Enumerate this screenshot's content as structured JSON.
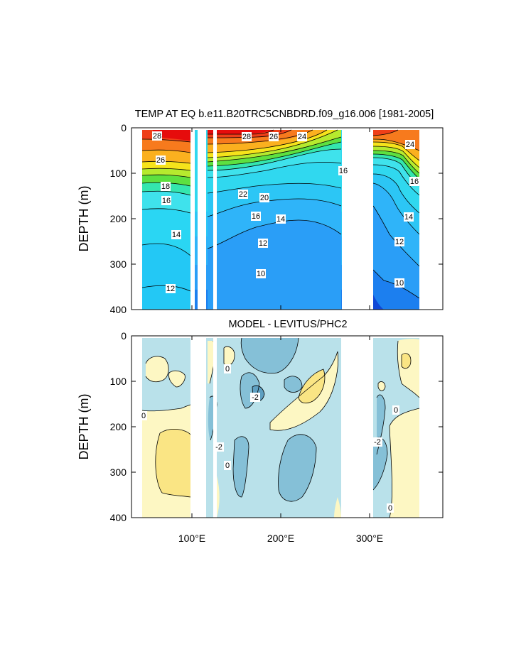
{
  "chart_data": [
    {
      "type": "contour",
      "title": "TEMP AT EQ b.e11.B20TRC5CNBDRD.f09_g16.006 [1981-2005]",
      "ylabel": "DEPTH (m)",
      "xlim": [
        30,
        380
      ],
      "ylim": [
        0,
        400
      ],
      "y_reversed": true,
      "yticks": [
        0,
        100,
        200,
        300,
        400
      ],
      "ytick_labels": [
        "0",
        "100",
        "200",
        "300",
        "400"
      ],
      "contour_interval": 1,
      "colorscale": "rainbow, blue (cold) to red (warm)",
      "land_gaps_lon": [
        [
          99,
          103
        ],
        [
          111,
          117
        ],
        [
          127,
          130
        ],
        [
          279,
          313
        ]
      ],
      "contour_labels": [
        {
          "value": "28",
          "lon": 56,
          "depth": 20
        },
        {
          "value": "26",
          "lon": 66,
          "depth": 67
        },
        {
          "value": "18",
          "lon": 62,
          "depth": 124
        },
        {
          "value": "16",
          "lon": 70,
          "depth": 160
        },
        {
          "value": "14",
          "lon": 70,
          "depth": 240
        },
        {
          "value": "12",
          "lon": 66,
          "depth": 358
        },
        {
          "value": "28",
          "lon": 167,
          "depth": 20
        },
        {
          "value": "26",
          "lon": 197,
          "depth": 20
        },
        {
          "value": "24",
          "lon": 229,
          "depth": 20
        },
        {
          "value": "22",
          "lon": 167,
          "depth": 148
        },
        {
          "value": "20",
          "lon": 185,
          "depth": 162
        },
        {
          "value": "16",
          "lon": 183,
          "depth": 200
        },
        {
          "value": "14",
          "lon": 216,
          "depth": 200
        },
        {
          "value": "12",
          "lon": 183,
          "depth": 256
        },
        {
          "value": "10",
          "lon": 193,
          "depth": 322
        },
        {
          "value": "16",
          "lon": 284,
          "depth": 92
        },
        {
          "value": "24",
          "lon": 355,
          "depth": 36
        },
        {
          "value": "16",
          "lon": 362,
          "depth": 124
        },
        {
          "value": "14",
          "lon": 355,
          "depth": 194
        },
        {
          "value": "12",
          "lon": 355,
          "depth": 252
        },
        {
          "value": "10",
          "lon": 352,
          "depth": 336
        }
      ]
    },
    {
      "type": "contour",
      "title": "MODEL - LEVITUS/PHC2",
      "ylabel": "DEPTH (m)",
      "xlim": [
        30,
        380
      ],
      "ylim": [
        0,
        400
      ],
      "y_reversed": true,
      "yticks": [
        0,
        100,
        200,
        300,
        400
      ],
      "ytick_labels": [
        "0",
        "100",
        "200",
        "300",
        "400"
      ],
      "xticks": [
        100,
        200,
        300
      ],
      "xtick_labels": [
        "100°E",
        "200°E",
        "300°E"
      ],
      "contour_interval": 2,
      "colorscale": "diverging: blue negative, yellow positive",
      "land_gaps_lon": [
        [
          99,
          118
        ],
        [
          127,
          130
        ],
        [
          279,
          313
        ]
      ],
      "contour_labels": [
        {
          "value": "0",
          "lon": 43,
          "depth": 175
        },
        {
          "value": "0",
          "lon": 149,
          "depth": 70
        },
        {
          "value": "-2",
          "lon": 186,
          "depth": 135
        },
        {
          "value": "-2",
          "lon": 131,
          "depth": 245
        },
        {
          "value": "0",
          "lon": 135,
          "depth": 280
        },
        {
          "value": "0",
          "lon": 349,
          "depth": 160
        },
        {
          "value": "-2",
          "lon": 318,
          "depth": 234
        },
        {
          "value": "0",
          "lon": 334,
          "depth": 385
        }
      ]
    }
  ]
}
